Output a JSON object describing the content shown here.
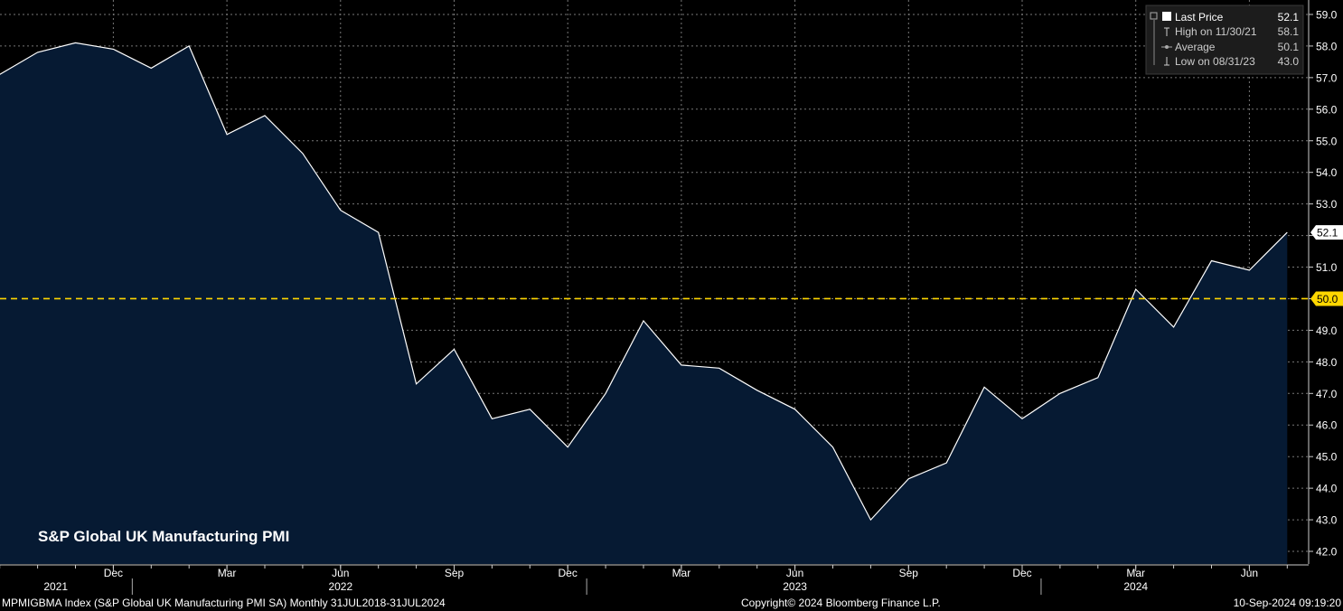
{
  "footer": {
    "left": "MPMIGBMA Index (S&P Global UK Manufacturing PMI SA)  Monthly 31JUL2018-31JUL2024",
    "center": "Copyright© 2024 Bloomberg Finance L.P.",
    "right": "10-Sep-2024 09:19:20"
  },
  "legend": {
    "last": {
      "label": "Last Price",
      "value": "52.1"
    },
    "high": {
      "label": "High on 11/30/21",
      "value": "58.1"
    },
    "average": {
      "label": "Average",
      "value": "50.1"
    },
    "low": {
      "label": "Low on 08/31/23",
      "value": "43.0"
    }
  },
  "chart_data": {
    "type": "area",
    "title": "S&P Global UK Manufacturing PMI",
    "x": [
      "2021-09",
      "2021-10",
      "2021-11",
      "2021-12",
      "2022-01",
      "2022-02",
      "2022-03",
      "2022-04",
      "2022-05",
      "2022-06",
      "2022-07",
      "2022-08",
      "2022-09",
      "2022-10",
      "2022-11",
      "2022-12",
      "2023-01",
      "2023-02",
      "2023-03",
      "2023-04",
      "2023-05",
      "2023-06",
      "2023-07",
      "2023-08",
      "2023-09",
      "2023-10",
      "2023-11",
      "2023-12",
      "2024-01",
      "2024-02",
      "2024-03",
      "2024-04",
      "2024-05",
      "2024-06",
      "2024-07"
    ],
    "values": [
      57.1,
      57.8,
      58.1,
      57.9,
      57.3,
      58.0,
      55.2,
      55.8,
      54.6,
      52.8,
      52.1,
      47.3,
      48.4,
      46.2,
      46.5,
      45.3,
      47.0,
      49.3,
      47.9,
      47.8,
      47.1,
      46.5,
      45.3,
      43.0,
      44.3,
      44.8,
      47.2,
      46.2,
      47.0,
      47.5,
      50.3,
      49.1,
      51.2,
      50.9,
      52.1
    ],
    "ylim": [
      41.6,
      59.4
    ],
    "y_ticks": [
      "42.0",
      "43.0",
      "44.0",
      "45.0",
      "46.0",
      "47.0",
      "48.0",
      "49.0",
      "50.0",
      "51.0",
      "52.0",
      "53.0",
      "54.0",
      "55.0",
      "56.0",
      "57.0",
      "58.0",
      "59.0"
    ],
    "x_ticks": [
      {
        "label": "Dec",
        "x": "2021-12"
      },
      {
        "label": "Mar",
        "x": "2022-03"
      },
      {
        "label": "Jun",
        "x": "2022-06"
      },
      {
        "label": "Sep",
        "x": "2022-09"
      },
      {
        "label": "Dec",
        "x": "2022-12"
      },
      {
        "label": "Mar",
        "x": "2023-03"
      },
      {
        "label": "Jun",
        "x": "2023-06"
      },
      {
        "label": "Sep",
        "x": "2023-09"
      },
      {
        "label": "Dec",
        "x": "2023-12"
      },
      {
        "label": "Mar",
        "x": "2024-03"
      },
      {
        "label": "Jun",
        "x": "2024-06"
      }
    ],
    "year_labels": [
      {
        "label": "2021",
        "x": "2021-09"
      },
      {
        "label": "2022",
        "x": "2022-06"
      },
      {
        "label": "2023",
        "x": "2023-06"
      },
      {
        "label": "2024",
        "x": "2024-03"
      }
    ],
    "year_separators": [
      "2022-01",
      "2023-01",
      "2024-01"
    ],
    "reference_line": {
      "value": 50.0,
      "label": "50.0",
      "color": "#ffd700"
    },
    "last_label": "52.1",
    "grid": true,
    "legend_position": "top-right",
    "colors": {
      "line": "#ffffff",
      "fill": "#061a33",
      "background": "#000000",
      "grid": "#777777"
    }
  }
}
